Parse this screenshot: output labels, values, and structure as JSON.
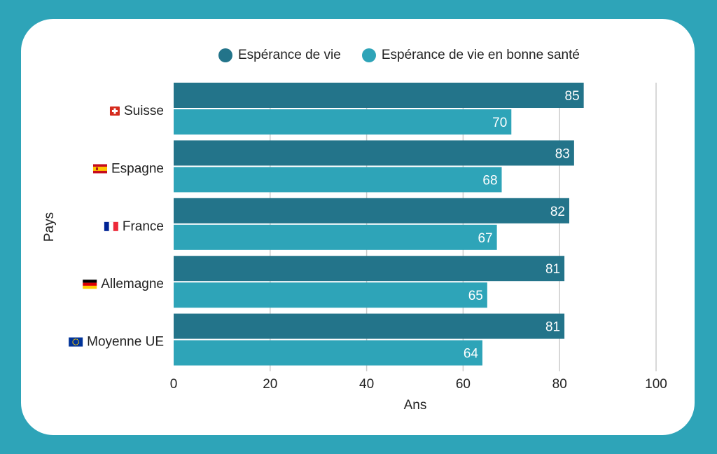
{
  "legend": {
    "life_expectancy": "Espérance de vie",
    "healthy_life_expectancy": "Espérance de vie en bonne santé"
  },
  "colors": {
    "background": "#2ea4b8",
    "card": "#ffffff",
    "series_life": "#23748a",
    "series_healthy": "#2ea4b8",
    "grid": "#cccccc",
    "text": "#222222"
  },
  "chart_data": {
    "type": "bar",
    "orientation": "horizontal",
    "categories": [
      "Suisse",
      "Espagne",
      "France",
      "Allemagne",
      "Moyenne UE"
    ],
    "category_flag_icons": [
      "swiss-flag-icon",
      "spanish-flag-icon",
      "french-flag-icon",
      "german-flag-icon",
      "eu-flag-icon"
    ],
    "series": [
      {
        "name": "Espérance de vie",
        "values": [
          85,
          83,
          82,
          81,
          81
        ]
      },
      {
        "name": "Espérance de vie en bonne santé",
        "values": [
          70,
          68,
          67,
          65,
          64
        ]
      }
    ],
    "xlabel": "Ans",
    "ylabel": "Pays",
    "xlim": [
      0,
      100
    ],
    "xticks": [
      0,
      20,
      40,
      60,
      80,
      100
    ],
    "grid": true,
    "legend_position": "top",
    "data_labels": true
  }
}
